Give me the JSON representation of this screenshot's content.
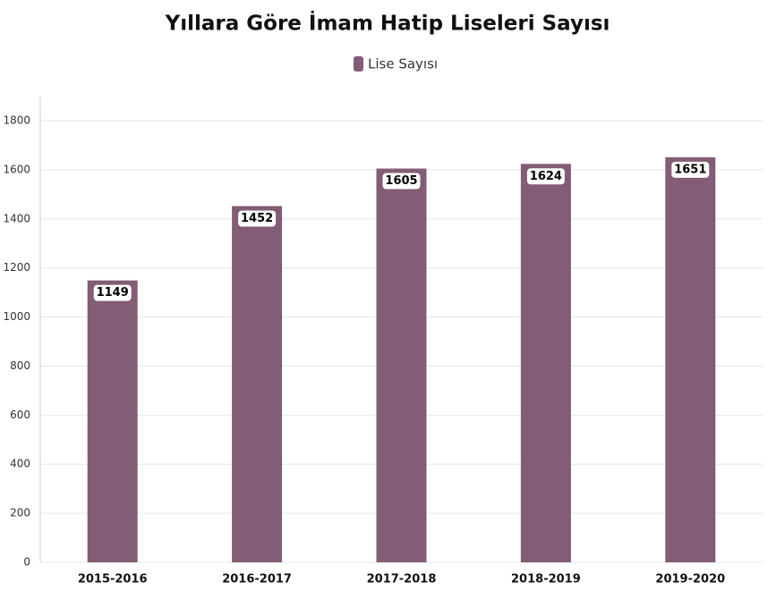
{
  "chart_data": {
    "type": "bar",
    "title": "Yıllara Göre İmam Hatip Liseleri Sayısı",
    "categories": [
      "2015-2016",
      "2016-2017",
      "2017-2018",
      "2018-2019",
      "2019-2020"
    ],
    "series": [
      {
        "name": "Lise Sayısı",
        "color": "#835c75",
        "values": [
          1149,
          1452,
          1605,
          1624,
          1651
        ]
      }
    ],
    "ylim": [
      0,
      1800
    ],
    "yticks": [
      0,
      200,
      400,
      600,
      800,
      1000,
      1200,
      1400,
      1600,
      1800
    ],
    "grid": true
  }
}
